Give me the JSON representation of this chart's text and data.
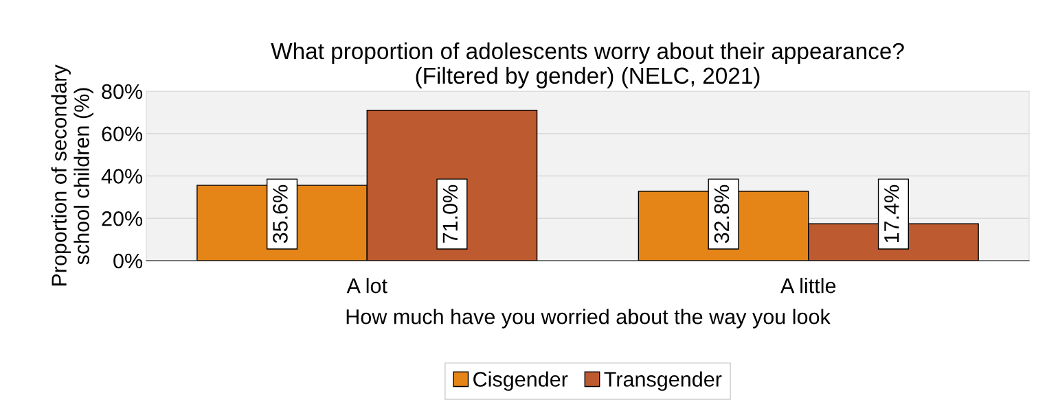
{
  "chart_data": {
    "type": "bar",
    "title": "What proportion of adolescents worry about their appearance?\n(Filtered by gender) (NELC, 2021)",
    "xlabel": "How much have you worried about the way you look",
    "ylabel": "Proportion of secondary\nschool children (%)",
    "categories": [
      "A lot",
      "A little"
    ],
    "series": [
      {
        "name": "Cisgender",
        "color": "#e58518",
        "values": [
          35.6,
          32.8
        ],
        "value_labels": [
          "35.6%",
          "32.8%"
        ]
      },
      {
        "name": "Transgender",
        "color": "#bd5a2f",
        "values": [
          71.0,
          17.4
        ],
        "value_labels": [
          "71.0%",
          "17.4%"
        ]
      }
    ],
    "ylim": [
      0,
      80
    ],
    "yticks": [
      {
        "value": 0,
        "label": "0%"
      },
      {
        "value": 20,
        "label": "20%"
      },
      {
        "value": 40,
        "label": "40%"
      },
      {
        "value": 60,
        "label": "60%"
      },
      {
        "value": 80,
        "label": "80%"
      }
    ],
    "grid": "y",
    "legend": "bottom"
  }
}
